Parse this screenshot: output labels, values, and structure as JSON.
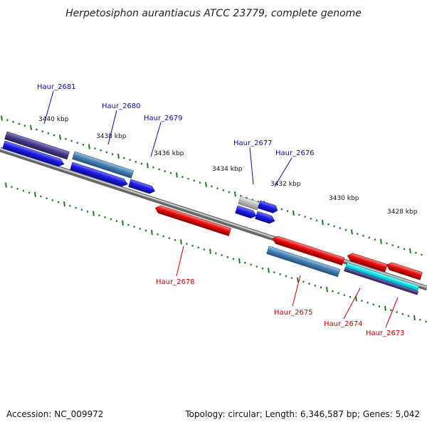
{
  "title": "Herpetosiphon aurantiacus ATCC 23779, complete genome",
  "footer": {
    "accession": "Accession: NC_009972",
    "summary": "Topology: circular; Length: 6,346,587 bp; Genes: 5,042"
  },
  "ticks": [
    "3440 kbp",
    "3438 kbp",
    "3436 kbp",
    "3434 kbp",
    "3432 kbp",
    "3430 kbp",
    "3428 kbp"
  ],
  "genes": {
    "haur_2681": "Haur_2681",
    "haur_2680": "Haur_2680",
    "haur_2679": "Haur_2679",
    "haur_2678": "Haur_2678",
    "haur_2677": "Haur_2677",
    "haur_2676": "Haur_2676",
    "haur_2675": "Haur_2675",
    "haur_2674": "Haur_2674",
    "haur_2673": "Haur_2673"
  },
  "colors": {
    "forward_cds": "#1a1ae6",
    "reverse_cds": "#e60a0a",
    "cog_steel_blue": "#4682b4",
    "cog_dark_slate": "#483d8b",
    "cog_cyan": "#00e5ee",
    "other_gray": "#bdbdbd",
    "backbone": "#8a8a8a",
    "tick": "#1e7a1e",
    "label_forward": "#0a0aa6",
    "label_reverse": "#c80000"
  }
}
